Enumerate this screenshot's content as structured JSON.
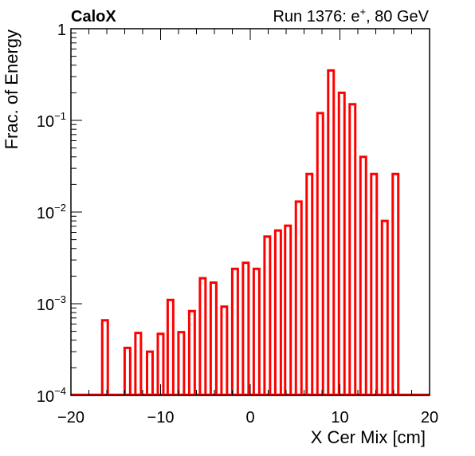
{
  "chart_data": {
    "type": "bar",
    "subtype": "histogram-step",
    "experiment_label": "CaloX",
    "run_label": "Run 1376: e",
    "run_label_sup": "+",
    "run_label_end": ", 80 GeV",
    "xlabel": "X Cer Mix [cm]",
    "ylabel": "Frac. of Energy",
    "xlim": [
      -20,
      20
    ],
    "ylim": [
      0.0001,
      1
    ],
    "yscale": "log",
    "bin_width": 0.62,
    "line_color": "#ff0000",
    "x_ticks": [
      {
        "value": -20,
        "label": "−20"
      },
      {
        "value": -10,
        "label": "−10"
      },
      {
        "value": 0,
        "label": "0"
      },
      {
        "value": 10,
        "label": "10"
      },
      {
        "value": 20,
        "label": "20"
      }
    ],
    "y_ticks": [
      {
        "exp": -4,
        "base": "10",
        "sup": "−4"
      },
      {
        "exp": -3,
        "base": "10",
        "sup": "−3"
      },
      {
        "exp": -2,
        "base": "10",
        "sup": "−2"
      },
      {
        "exp": -1,
        "base": "10",
        "sup": "−1"
      },
      {
        "exp": 0,
        "base": "1",
        "sup": ""
      }
    ],
    "bins": [
      {
        "x": -16.2,
        "y": 0.00066
      },
      {
        "x": -13.7,
        "y": 0.00033
      },
      {
        "x": -12.5,
        "y": 0.00048
      },
      {
        "x": -11.2,
        "y": 0.0003
      },
      {
        "x": -10.0,
        "y": 0.00047
      },
      {
        "x": -8.9,
        "y": 0.0011
      },
      {
        "x": -7.7,
        "y": 0.00049
      },
      {
        "x": -6.5,
        "y": 0.00083
      },
      {
        "x": -5.3,
        "y": 0.0019
      },
      {
        "x": -4.1,
        "y": 0.0017
      },
      {
        "x": -2.9,
        "y": 0.00093
      },
      {
        "x": -1.7,
        "y": 0.0024
      },
      {
        "x": -0.5,
        "y": 0.0028
      },
      {
        "x": 0.7,
        "y": 0.0024
      },
      {
        "x": 1.9,
        "y": 0.0054
      },
      {
        "x": 3.1,
        "y": 0.0063
      },
      {
        "x": 4.2,
        "y": 0.0071
      },
      {
        "x": 5.4,
        "y": 0.013
      },
      {
        "x": 6.6,
        "y": 0.026
      },
      {
        "x": 7.8,
        "y": 0.12
      },
      {
        "x": 9.0,
        "y": 0.35
      },
      {
        "x": 10.2,
        "y": 0.2
      },
      {
        "x": 11.4,
        "y": 0.15
      },
      {
        "x": 12.6,
        "y": 0.04
      },
      {
        "x": 13.8,
        "y": 0.026
      },
      {
        "x": 15.0,
        "y": 0.008
      },
      {
        "x": 16.2,
        "y": 0.026
      }
    ]
  }
}
